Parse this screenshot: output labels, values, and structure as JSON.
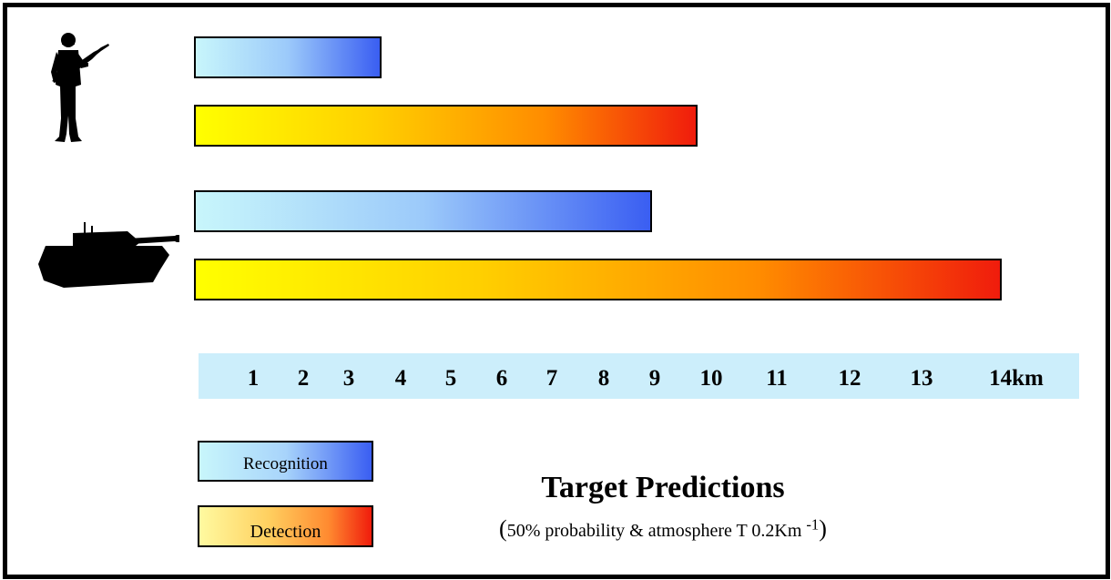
{
  "chart_data": {
    "type": "bar",
    "orientation": "horizontal",
    "categories": [
      "soldier-icon",
      "tank-icon"
    ],
    "series": [
      {
        "name": "Recognition",
        "color_start": "#c8f6fb",
        "color_end": "#3a5ef2",
        "values": [
          3.3,
          8.1
        ]
      },
      {
        "name": "Detection",
        "color_start": "#ffff00",
        "color_end": "#f01c0c",
        "values": [
          8.9,
          14.3
        ]
      }
    ],
    "xlim": [
      0,
      14.5
    ],
    "ticks": [
      {
        "value": 1,
        "label": "1"
      },
      {
        "value": 2,
        "label": "2"
      },
      {
        "value": 3,
        "label": "3"
      },
      {
        "value": 4,
        "label": "4"
      },
      {
        "value": 5,
        "label": "5"
      },
      {
        "value": 6,
        "label": "6"
      },
      {
        "value": 7,
        "label": "7"
      },
      {
        "value": 8,
        "label": "8"
      },
      {
        "value": 9,
        "label": "9"
      },
      {
        "value": 10,
        "label": "10"
      },
      {
        "value": 11,
        "label": "11"
      },
      {
        "value": 12,
        "label": "12"
      },
      {
        "value": 13,
        "label": "13"
      },
      {
        "value": 14,
        "label": "14km"
      }
    ],
    "title": "Target Predictions",
    "subtitle": {
      "open": "(",
      "text": "50% probability & atmosphere T 0.2Km",
      "exponent": "-1",
      "close": ")"
    },
    "legend": {
      "placement": "bottom-left",
      "items": [
        "Recognition",
        "Detection"
      ]
    }
  }
}
